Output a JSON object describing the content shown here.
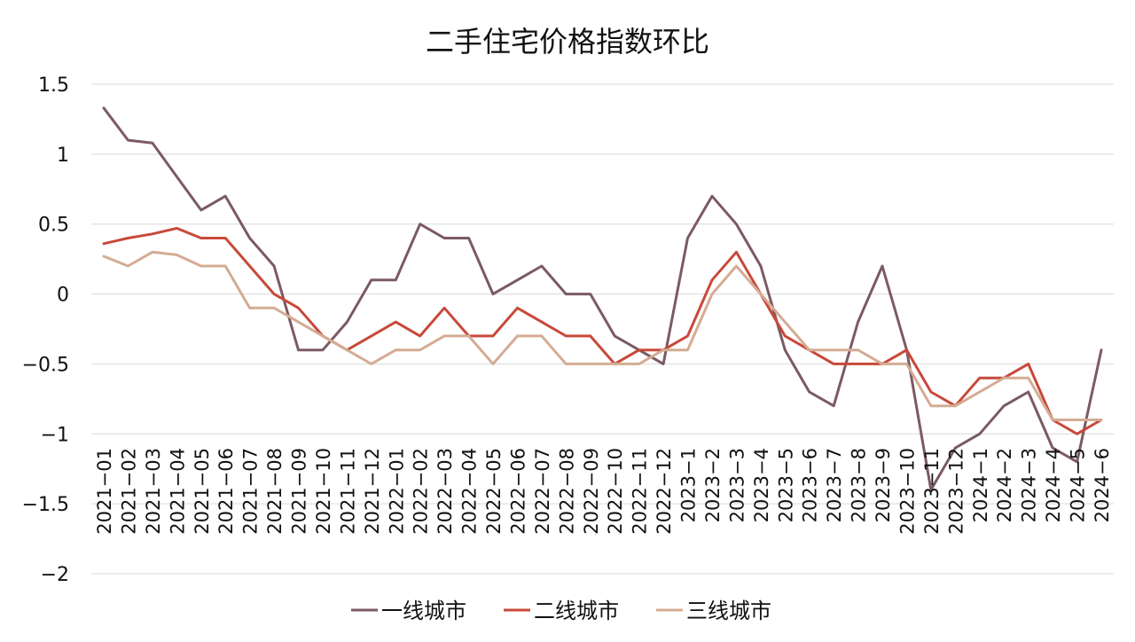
{
  "chart_data": {
    "type": "line",
    "title": "二手住宅价格指数环比",
    "xlabel": "",
    "ylabel": "",
    "ylim": [
      -2,
      1.5
    ],
    "yticks": [
      "1.5",
      "1",
      "0.5",
      "0",
      "−0.5",
      "−1",
      "−1.5",
      "−2"
    ],
    "ytick_values": [
      1.5,
      1,
      0.5,
      0,
      -0.5,
      -1,
      -1.5,
      -2
    ],
    "grid": true,
    "legend_position": "bottom",
    "categories": [
      "2021−01",
      "2021−02",
      "2021−03",
      "2021−04",
      "2021−05",
      "2021−06",
      "2021−07",
      "2021−08",
      "2021−09",
      "2021−10",
      "2021−11",
      "2021−12",
      "2022−01",
      "2022−02",
      "2022−03",
      "2022−04",
      "2022−05",
      "2022−06",
      "2022−07",
      "2022−08",
      "2022−09",
      "2022−10",
      "2022−11",
      "2022−12",
      "2023−1",
      "2023−2",
      "2023−3",
      "2023−4",
      "2023−5",
      "2023−6",
      "2023−7",
      "2023−8",
      "2023−9",
      "2023−10",
      "2023−11",
      "2023−12",
      "2024−1",
      "2024−2",
      "2024−3",
      "2024−4",
      "2024−5",
      "2024−6"
    ],
    "series": [
      {
        "name": "一线城市",
        "color": "#7b5a63",
        "values": [
          1.33,
          1.1,
          1.08,
          0.84,
          0.6,
          0.7,
          0.4,
          0.2,
          -0.4,
          -0.4,
          -0.2,
          0.1,
          0.1,
          0.5,
          0.4,
          0.4,
          0.0,
          0.1,
          0.2,
          0.0,
          0.0,
          -0.3,
          -0.4,
          -0.5,
          0.4,
          0.7,
          0.5,
          0.2,
          -0.4,
          -0.7,
          -0.8,
          -0.2,
          0.2,
          -0.4,
          -1.4,
          -1.1,
          -1.0,
          -0.8,
          -0.7,
          -1.1,
          -1.2,
          -0.4
        ]
      },
      {
        "name": "二线城市",
        "color": "#c8493a",
        "values": [
          0.36,
          0.4,
          0.43,
          0.47,
          0.4,
          0.4,
          0.2,
          0.0,
          -0.1,
          -0.3,
          -0.4,
          -0.3,
          -0.2,
          -0.3,
          -0.1,
          -0.3,
          -0.3,
          -0.1,
          -0.2,
          -0.3,
          -0.3,
          -0.5,
          -0.4,
          -0.4,
          -0.3,
          0.1,
          0.3,
          0.0,
          -0.3,
          -0.4,
          -0.5,
          -0.5,
          -0.5,
          -0.4,
          -0.7,
          -0.8,
          -0.6,
          -0.6,
          -0.5,
          -0.9,
          -1.0,
          -0.9
        ]
      },
      {
        "name": "三线城市",
        "color": "#d4ac93",
        "values": [
          0.27,
          0.2,
          0.3,
          0.28,
          0.2,
          0.2,
          -0.1,
          -0.1,
          -0.2,
          -0.3,
          -0.4,
          -0.5,
          -0.4,
          -0.4,
          -0.3,
          -0.3,
          -0.5,
          -0.3,
          -0.3,
          -0.5,
          -0.5,
          -0.5,
          -0.5,
          -0.4,
          -0.4,
          0.0,
          0.2,
          0.0,
          -0.2,
          -0.4,
          -0.4,
          -0.4,
          -0.5,
          -0.5,
          -0.8,
          -0.8,
          -0.7,
          -0.6,
          -0.6,
          -0.9,
          -0.9,
          -0.9
        ]
      }
    ]
  }
}
